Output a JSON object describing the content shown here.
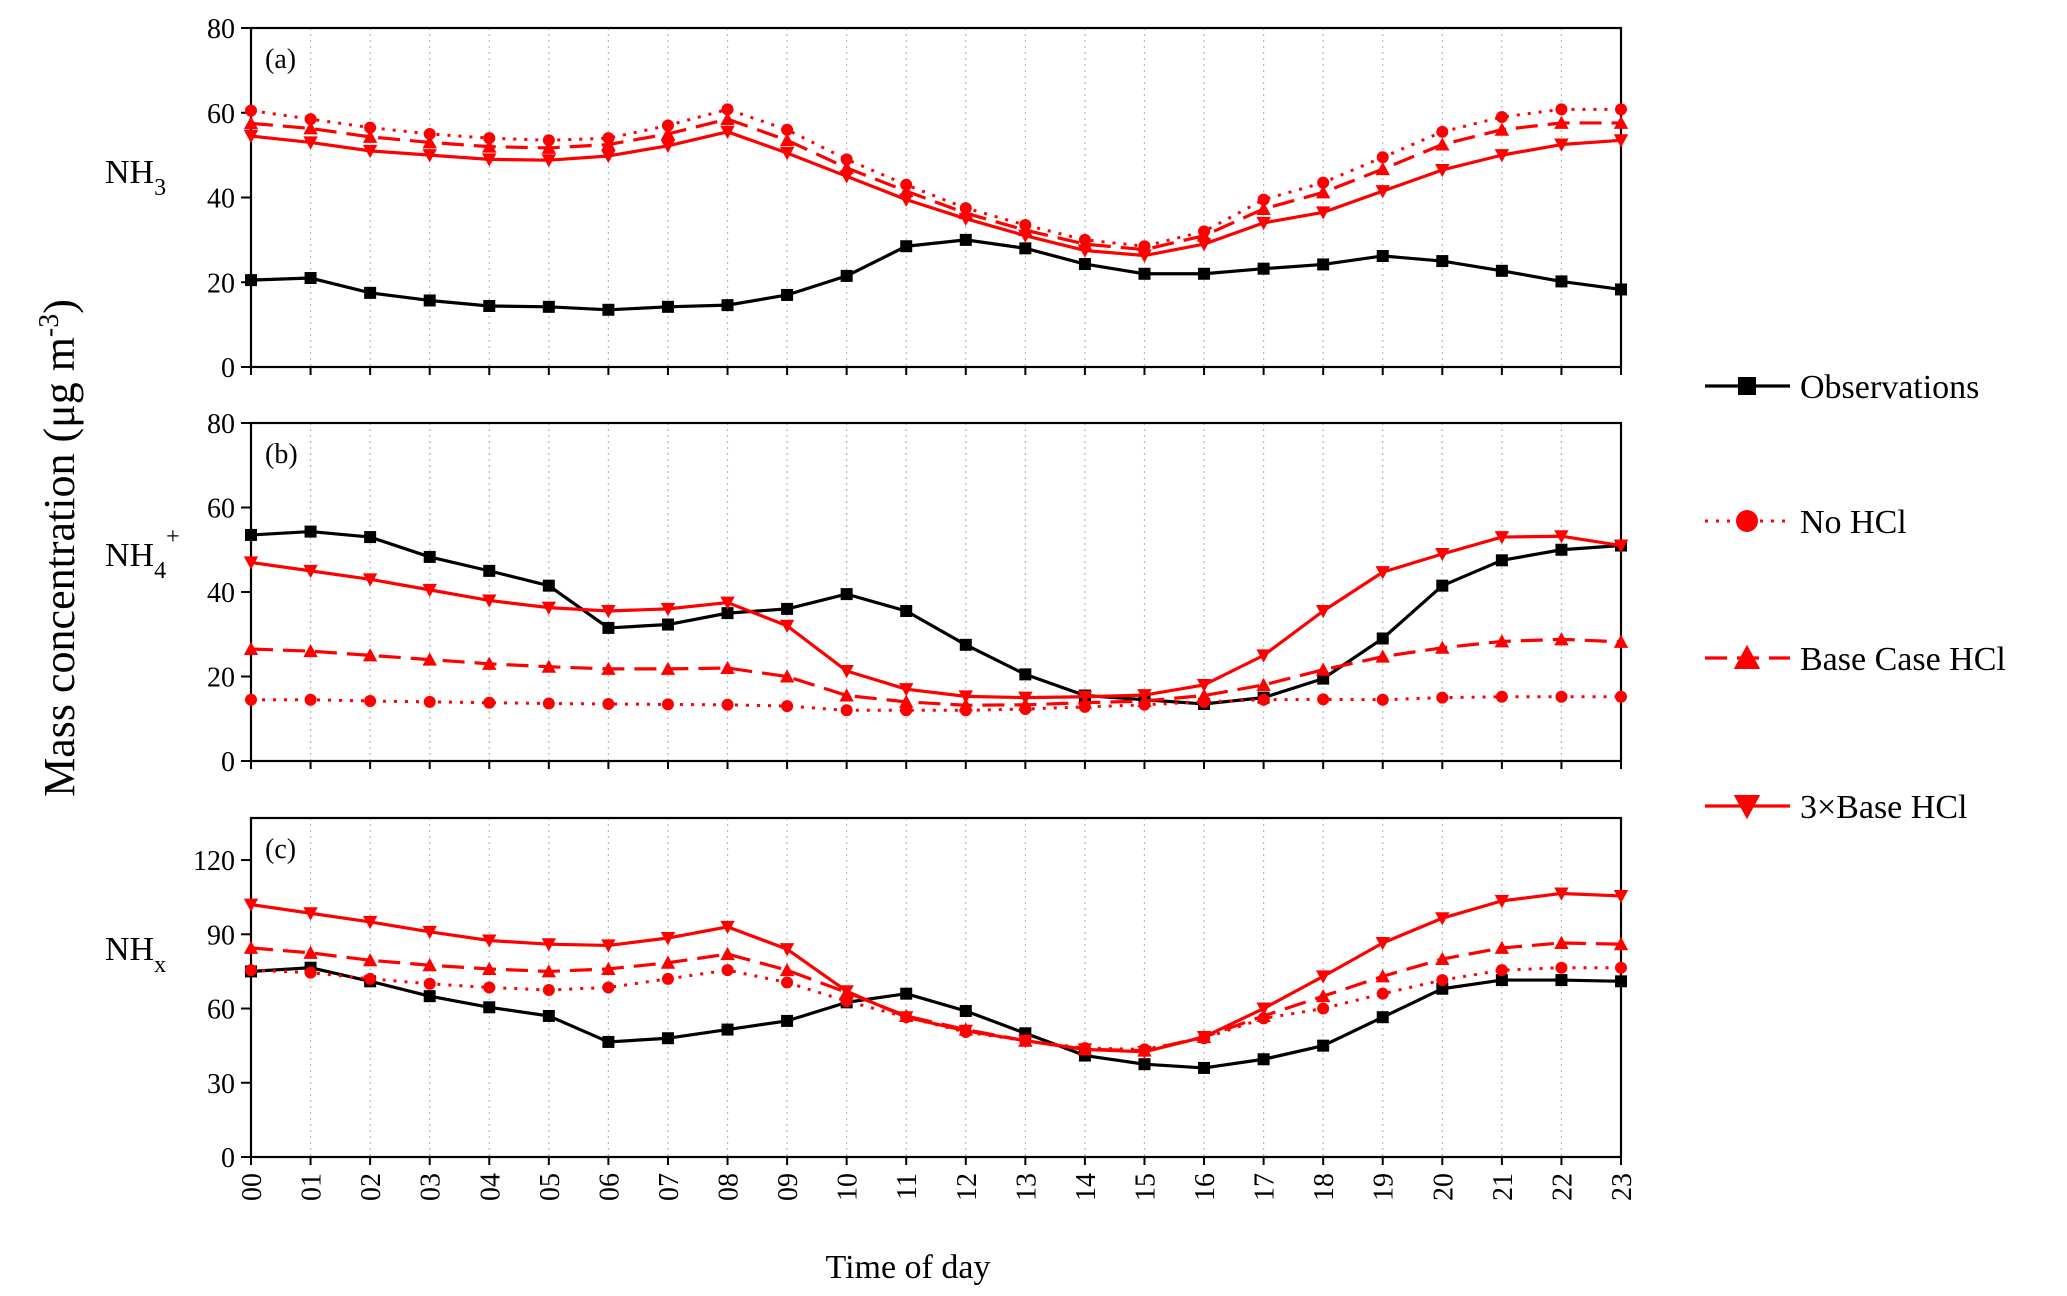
{
  "figure": {
    "ylabel_main": "Mass concentration (μg m",
    "ylabel_sup": "-3",
    "ylabel_close": ")",
    "xlabel": "Time of day"
  },
  "legend": {
    "items": [
      {
        "label": "Observations",
        "color": "#000000",
        "line": "solid",
        "marker": "square"
      },
      {
        "label": "No HCl",
        "color": "#ff0000",
        "line": "dotted",
        "marker": "circle"
      },
      {
        "label": "Base Case HCl",
        "color": "#ff0000",
        "line": "dashed",
        "marker": "triangle-up"
      },
      {
        "label": "3×Base HCl",
        "color": "#ff0000",
        "line": "solid",
        "marker": "triangle-down"
      }
    ]
  },
  "chart_data": [
    {
      "type": "line",
      "panel_label": "(a)",
      "species": {
        "base": "NH",
        "sub": "3",
        "sup": ""
      },
      "categories": [
        "00",
        "01",
        "02",
        "03",
        "04",
        "05",
        "06",
        "07",
        "08",
        "09",
        "10",
        "11",
        "12",
        "13",
        "14",
        "15",
        "16",
        "17",
        "18",
        "19",
        "20",
        "21",
        "22",
        "23"
      ],
      "ylim": [
        0,
        80
      ],
      "yticks": [
        0,
        20,
        40,
        60,
        80
      ],
      "grid": "vertical dotted",
      "series": [
        {
          "name": "Observations",
          "values": [
            20.5,
            21,
            17.5,
            15.7,
            14.4,
            14.2,
            13.5,
            14.2,
            14.6,
            17,
            21.5,
            28.5,
            30,
            28,
            24.3,
            22,
            22,
            23.2,
            24.2,
            26.2,
            25,
            22.7,
            20.2,
            18.3
          ]
        },
        {
          "name": "No HCl",
          "values": [
            60.5,
            58.5,
            56.5,
            55,
            54,
            53.5,
            54,
            57,
            60.8,
            56,
            49,
            43,
            37.5,
            33.5,
            30,
            28.5,
            32,
            39.5,
            43.5,
            49.5,
            55.5,
            59,
            60.8,
            60.8
          ]
        },
        {
          "name": "Base Case HCl",
          "values": [
            57.5,
            56.3,
            54.3,
            53,
            52,
            51.7,
            52.5,
            55,
            58.5,
            53.5,
            47,
            41.5,
            36.3,
            32.3,
            29,
            27.7,
            31,
            37.3,
            41.2,
            46.7,
            52.5,
            56,
            57.6,
            57.6
          ]
        },
        {
          "name": "3×Base HCl",
          "values": [
            54.5,
            53,
            51,
            50,
            49,
            48.8,
            49.8,
            52.2,
            55.5,
            50.5,
            45,
            39.5,
            35,
            31,
            27.5,
            26.3,
            29,
            34,
            36.5,
            41.5,
            46.5,
            50,
            52.5,
            53.5
          ]
        }
      ]
    },
    {
      "type": "line",
      "panel_label": "(b)",
      "species": {
        "base": "NH",
        "sub": "4",
        "sup": "+"
      },
      "categories": [
        "00",
        "01",
        "02",
        "03",
        "04",
        "05",
        "06",
        "07",
        "08",
        "09",
        "10",
        "11",
        "12",
        "13",
        "14",
        "15",
        "16",
        "17",
        "18",
        "19",
        "20",
        "21",
        "22",
        "23"
      ],
      "ylim": [
        0,
        80
      ],
      "yticks": [
        0,
        20,
        40,
        60,
        80
      ],
      "grid": "vertical dotted",
      "series": [
        {
          "name": "Observations",
          "values": [
            53.5,
            54.3,
            53,
            48.3,
            45,
            41.5,
            31.5,
            32.3,
            35,
            36,
            39.5,
            35.5,
            27.5,
            20.5,
            15.5,
            14.5,
            13.5,
            15,
            19.5,
            29,
            41.5,
            47.5,
            50,
            51
          ]
        },
        {
          "name": "No HCl",
          "values": [
            14.5,
            14.5,
            14.2,
            14,
            13.8,
            13.6,
            13.5,
            13.4,
            13.3,
            13,
            12,
            12,
            12,
            12.3,
            12.8,
            13.3,
            14,
            14.5,
            14.6,
            14.5,
            15,
            15.2,
            15.2,
            15.2
          ]
        },
        {
          "name": "Base Case HCl",
          "values": [
            26.5,
            26,
            25,
            24,
            23,
            22.3,
            21.8,
            21.8,
            22,
            20,
            15.5,
            14,
            13.2,
            13.3,
            13.8,
            14.2,
            15.5,
            18,
            21.6,
            24.7,
            26.8,
            28.3,
            28.8,
            28.2
          ]
        },
        {
          "name": "3×Base HCl",
          "values": [
            47,
            45,
            43,
            40.5,
            38,
            36.3,
            35.5,
            36,
            37.5,
            32,
            21.3,
            17,
            15.3,
            15,
            15.2,
            15.6,
            18,
            25,
            35.5,
            44.7,
            49,
            53,
            53.2,
            51
          ]
        }
      ]
    },
    {
      "type": "line",
      "panel_label": "(c)",
      "species": {
        "base": "NH",
        "sub": "x",
        "sup": ""
      },
      "categories": [
        "00",
        "01",
        "02",
        "03",
        "04",
        "05",
        "06",
        "07",
        "08",
        "09",
        "10",
        "11",
        "12",
        "13",
        "14",
        "15",
        "16",
        "17",
        "18",
        "19",
        "20",
        "21",
        "22",
        "23"
      ],
      "ylim": [
        0,
        137
      ],
      "yticks": [
        0,
        30,
        60,
        90,
        120
      ],
      "grid": "vertical dotted",
      "series": [
        {
          "name": "Observations",
          "values": [
            75,
            76.5,
            71,
            65,
            60.5,
            57,
            46.5,
            48,
            51.5,
            55,
            62.5,
            66,
            59,
            50,
            41,
            37.5,
            36,
            39.5,
            45,
            56.5,
            68,
            71.5,
            71.5,
            71
          ]
        },
        {
          "name": "No HCl",
          "values": [
            75.5,
            74.5,
            72,
            70,
            68.5,
            67.5,
            68.5,
            72,
            75.5,
            70.5,
            63,
            56.5,
            50.5,
            47,
            44,
            43.5,
            48,
            56,
            60,
            66,
            71.5,
            75.5,
            76.5,
            76.5
          ]
        },
        {
          "name": "Base Case HCl",
          "values": [
            84.5,
            82.5,
            79.5,
            77.5,
            76,
            75,
            76,
            78.5,
            82,
            75.5,
            66.5,
            57,
            51.5,
            47,
            43.5,
            43,
            48.5,
            57,
            65,
            73,
            80,
            84.5,
            86.5,
            86
          ]
        },
        {
          "name": "3×Base HCl",
          "values": [
            102,
            98.5,
            95,
            91,
            87.5,
            86,
            85.5,
            88.5,
            93,
            84,
            67,
            56.5,
            51,
            47,
            43.5,
            42.5,
            48.5,
            60,
            73,
            86.5,
            96.5,
            103.5,
            106.5,
            105.5
          ]
        }
      ]
    }
  ]
}
